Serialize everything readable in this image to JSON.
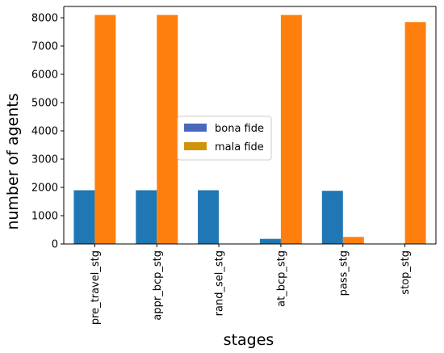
{
  "chart_data": {
    "type": "bar",
    "categories": [
      "pre_travel_stg",
      "appr_bcp_stg",
      "rand_sel_stg",
      "at_bcp_stg",
      "pass_stg",
      "stop_stg"
    ],
    "series": [
      {
        "name": "bona fide",
        "values": [
          1900,
          1900,
          1900,
          180,
          1880,
          0
        ],
        "color": "#1f77b4",
        "legend_color": "#4a68bb"
      },
      {
        "name": "mala fide",
        "values": [
          8100,
          8100,
          0,
          8100,
          250,
          7850
        ],
        "color": "#ff7f0e",
        "legend_color": "#cf9408"
      }
    ],
    "xlabel": "stages",
    "ylabel": "number of agents",
    "ylim": [
      0,
      8400
    ],
    "yticks": [
      0,
      1000,
      2000,
      3000,
      4000,
      5000,
      6000,
      7000,
      8000
    ],
    "grid": false,
    "legend": "center"
  }
}
